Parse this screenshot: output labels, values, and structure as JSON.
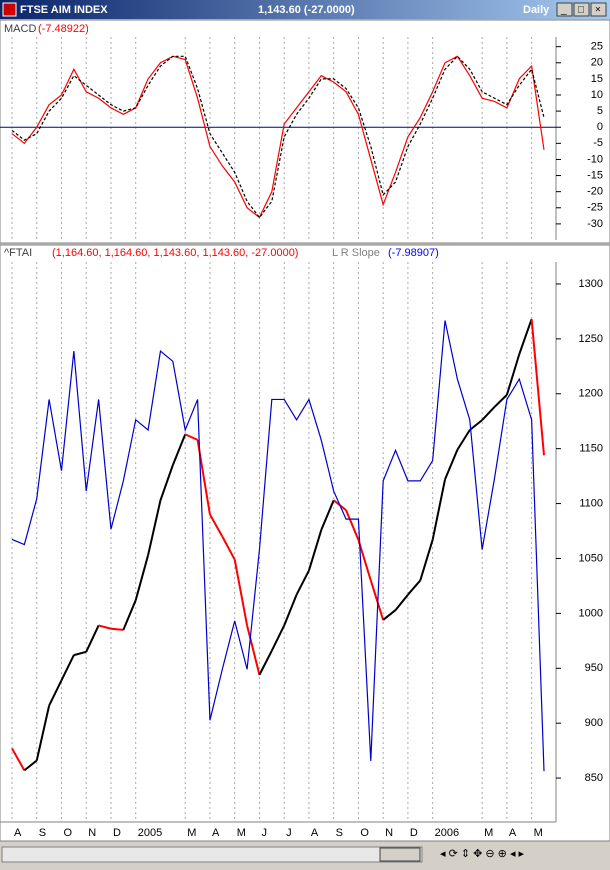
{
  "window": {
    "title": "FTSE AIM INDEX",
    "quote": "1,143.60 (-27.0000)",
    "period": "Daily"
  },
  "chart_data": [
    {
      "type": "line",
      "title": "MACD",
      "title_value": "(-7.48922)",
      "ylim": [
        -35,
        28
      ],
      "yticks": [
        25,
        20,
        15,
        10,
        5,
        0,
        -5,
        -10,
        -15,
        -20,
        -25,
        -30
      ],
      "reference_line": 0,
      "x_grid": true,
      "series": [
        {
          "name": "MACD",
          "color": "#ff0000",
          "values": [
            -2,
            -5,
            0,
            7,
            10,
            18,
            11,
            9,
            6,
            4,
            6,
            15,
            20,
            22,
            21,
            9,
            -6,
            -12,
            -17,
            -25,
            -28,
            -20,
            1,
            6,
            11,
            16,
            14,
            11,
            4,
            -10,
            -24,
            -14,
            -3,
            3,
            11,
            20,
            22,
            16,
            9,
            8,
            6,
            15,
            19,
            -7
          ]
        },
        {
          "color": "#000000",
          "dashed": true,
          "values": [
            -1,
            -4,
            -2,
            5,
            9,
            16,
            13,
            10,
            7,
            5,
            6,
            13,
            19,
            22,
            22,
            12,
            -2,
            -8,
            -14,
            -23,
            -28,
            -23,
            -3,
            4,
            9,
            15,
            15,
            12,
            6,
            -6,
            -21,
            -17,
            -6,
            1,
            9,
            18,
            22,
            18,
            11,
            9,
            7,
            13,
            18,
            3
          ]
        }
      ]
    },
    {
      "type": "line",
      "title": "^FTAI",
      "title_value": "(1,164.60, 1,164.60, 1,143.60, 1,143.60, -27.0000)",
      "title2": "L R Slope",
      "title2_value": "(-7.98907)",
      "categories": [
        "A",
        null,
        "S",
        null,
        "O",
        null,
        "N",
        null,
        "D",
        null,
        "2005",
        null,
        null,
        null,
        "M",
        null,
        "A",
        null,
        "M",
        null,
        "J",
        null,
        "J",
        null,
        "A",
        null,
        "S",
        null,
        "O",
        null,
        "N",
        null,
        "D",
        null,
        "2006",
        null,
        null,
        null,
        "M",
        null,
        "A",
        null,
        "M",
        null
      ],
      "ylim": [
        810,
        1320
      ],
      "yticks": [
        1300,
        1250,
        1200,
        1150,
        1100,
        1050,
        1000,
        950,
        900,
        850
      ],
      "y2lim": [
        -10,
        12
      ],
      "x_grid": true,
      "series": [
        {
          "name": "^FTAI",
          "color": "#000000",
          "down_color": "#ff0000",
          "values": [
            877,
            857,
            866,
            916,
            939,
            962,
            965,
            989,
            986,
            985,
            1012,
            1053,
            1103,
            1135,
            1163,
            1158,
            1090,
            1070,
            1049,
            989,
            944,
            966,
            989,
            1017,
            1039,
            1076,
            1103,
            1094,
            1067,
            1030,
            994,
            1003,
            1017,
            1030,
            1067,
            1122,
            1149,
            1167,
            1176,
            1188,
            1199,
            1236,
            1268,
            1144
          ]
        },
        {
          "name": "L R Slope",
          "color": "#0000cc",
          "axis": "y2",
          "values": [
            1.1,
            0.9,
            2.7,
            6.6,
            3.8,
            8.5,
            3.0,
            6.6,
            1.5,
            3.4,
            5.8,
            5.4,
            8.5,
            8.1,
            5.4,
            6.6,
            -6.0,
            -4,
            -2.1,
            -4.0,
            0.7,
            6.6,
            6.6,
            5.8,
            6.6,
            5.0,
            3.0,
            1.9,
            1.9,
            -7.6,
            3.4,
            4.6,
            3.4,
            3.4,
            4.2,
            9.7,
            7.4,
            5.8,
            0.7,
            3.5,
            6.6,
            7.4,
            5.8,
            -8.0
          ]
        }
      ]
    }
  ]
}
